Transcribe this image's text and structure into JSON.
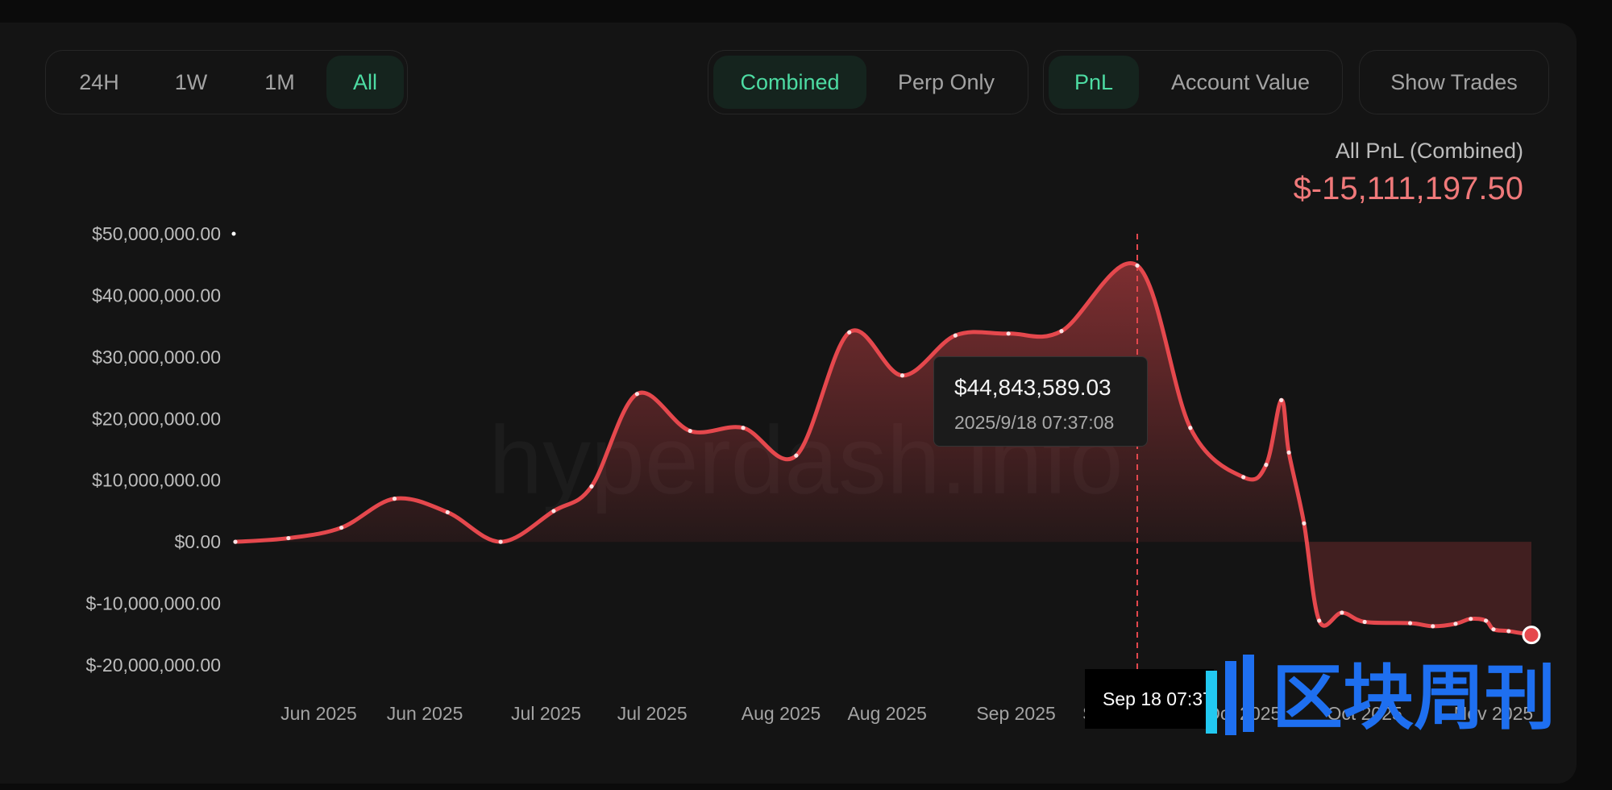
{
  "range_tabs": [
    {
      "label": "24H",
      "active": false
    },
    {
      "label": "1W",
      "active": false
    },
    {
      "label": "1M",
      "active": false
    },
    {
      "label": "All",
      "active": true
    }
  ],
  "mode_tabs": [
    {
      "label": "Combined",
      "active": true
    },
    {
      "label": "Perp Only",
      "active": false
    }
  ],
  "metric_tabs": [
    {
      "label": "PnL",
      "active": true
    },
    {
      "label": "Account Value",
      "active": false
    }
  ],
  "show_trades_label": "Show Trades",
  "summary": {
    "caption": "All PnL (Combined)",
    "value": "$-15,111,197.50"
  },
  "tooltip": {
    "value": "$44,843,589.03",
    "datetime": "2025/9/18 07:37:08"
  },
  "crosshair_label": "Sep 18 07:37",
  "watermark": "hyperdash.info",
  "overlay_logo": {
    "text": "区块周刊"
  },
  "colors": {
    "line": "#e5484d",
    "accent": "#4ddca3",
    "negative_value": "#f0797a",
    "logo_blue": "#1e6ff0",
    "logo_cyan": "#22c8f0"
  },
  "chart_data": {
    "type": "area",
    "ylim": [
      -20000000,
      50000000
    ],
    "y_ticks": [
      {
        "value": 50000000,
        "label": "$50,000,000.00"
      },
      {
        "value": 40000000,
        "label": "$40,000,000.00"
      },
      {
        "value": 30000000,
        "label": "$30,000,000.00"
      },
      {
        "value": 20000000,
        "label": "$20,000,000.00"
      },
      {
        "value": 10000000,
        "label": "$10,000,000.00"
      },
      {
        "value": 0,
        "label": "$0.00"
      },
      {
        "value": -10000000,
        "label": "$-10,000,000.00"
      },
      {
        "value": -20000000,
        "label": "$-20,000,000.00"
      }
    ],
    "x_range": [
      "2025-05-22",
      "2025-11-09"
    ],
    "x_ticks": [
      {
        "date": "2025-06-02",
        "label": "Jun 2025"
      },
      {
        "date": "2025-06-16",
        "label": "Jun 2025"
      },
      {
        "date": "2025-07-02",
        "label": "Jul 2025"
      },
      {
        "date": "2025-07-16",
        "label": "Jul 2025"
      },
      {
        "date": "2025-08-02",
        "label": "Aug 2025"
      },
      {
        "date": "2025-08-16",
        "label": "Aug 2025"
      },
      {
        "date": "2025-09-02",
        "label": "Sep 2025"
      },
      {
        "date": "2025-09-16",
        "label": "Sep 2025"
      },
      {
        "date": "2025-10-02",
        "label": "Oct 2025"
      },
      {
        "date": "2025-10-18",
        "label": "Oct 2025"
      },
      {
        "date": "2025-11-04",
        "label": "Nov 2025"
      }
    ],
    "points": [
      {
        "x": "2025-05-22",
        "y": 0
      },
      {
        "x": "2025-05-29",
        "y": 600000
      },
      {
        "x": "2025-06-05",
        "y": 2300000
      },
      {
        "x": "2025-06-12",
        "y": 7000000
      },
      {
        "x": "2025-06-19",
        "y": 4800000
      },
      {
        "x": "2025-06-26",
        "y": 0
      },
      {
        "x": "2025-07-03",
        "y": 5000000
      },
      {
        "x": "2025-07-08",
        "y": 9000000
      },
      {
        "x": "2025-07-14",
        "y": 24000000
      },
      {
        "x": "2025-07-21",
        "y": 18000000
      },
      {
        "x": "2025-07-28",
        "y": 18500000
      },
      {
        "x": "2025-08-04",
        "y": 14000000
      },
      {
        "x": "2025-08-11",
        "y": 34000000
      },
      {
        "x": "2025-08-18",
        "y": 27000000
      },
      {
        "x": "2025-08-25",
        "y": 33500000
      },
      {
        "x": "2025-09-01",
        "y": 33800000
      },
      {
        "x": "2025-09-08",
        "y": 34200000
      },
      {
        "x": "2025-09-18",
        "y": 44843589.03
      },
      {
        "x": "2025-09-25",
        "y": 18500000
      },
      {
        "x": "2025-10-02",
        "y": 10500000
      },
      {
        "x": "2025-10-05",
        "y": 12500000
      },
      {
        "x": "2025-10-07",
        "y": 23000000
      },
      {
        "x": "2025-10-08",
        "y": 14500000
      },
      {
        "x": "2025-10-10",
        "y": 3000000
      },
      {
        "x": "2025-10-12",
        "y": -12800000
      },
      {
        "x": "2025-10-15",
        "y": -11500000
      },
      {
        "x": "2025-10-18",
        "y": -13000000
      },
      {
        "x": "2025-10-24",
        "y": -13200000
      },
      {
        "x": "2025-10-27",
        "y": -13700000
      },
      {
        "x": "2025-10-30",
        "y": -13300000
      },
      {
        "x": "2025-11-01",
        "y": -12500000
      },
      {
        "x": "2025-11-03",
        "y": -12800000
      },
      {
        "x": "2025-11-04",
        "y": -14200000
      },
      {
        "x": "2025-11-06",
        "y": -14500000
      },
      {
        "x": "2025-11-09",
        "y": -15111197.5
      }
    ],
    "highlight_x": "2025-09-18"
  }
}
